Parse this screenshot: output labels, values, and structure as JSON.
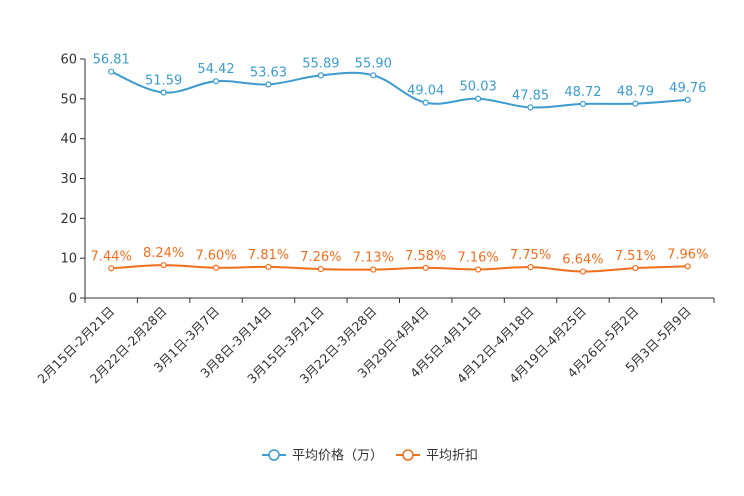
{
  "chart_data": {
    "type": "line",
    "categories": [
      "2月15日-2月21日",
      "2月22日-2月28日",
      "3月1日-3月7日",
      "3月8日-3月14日",
      "3月15日-3月21日",
      "3月22日-3月28日",
      "3月29日-4月4日",
      "4月5日-4月11日",
      "4月12日-4月18日",
      "4月19日-4月25日",
      "4月26日-5月2日",
      "5月3日-5月9日"
    ],
    "ylim": [
      0,
      60
    ],
    "yticks": [
      0,
      10,
      20,
      30,
      40,
      50,
      60
    ],
    "grid": false,
    "legend": "bottom-center",
    "series": [
      {
        "name": "平均价格（万）",
        "color": "#3d9bd0",
        "values": [
          56.81,
          51.59,
          54.42,
          53.63,
          55.89,
          55.9,
          49.04,
          50.03,
          47.85,
          48.72,
          48.79,
          49.76
        ],
        "labels": [
          "56.81",
          "51.59",
          "54.42",
          "53.63",
          "55.89",
          "55.90",
          "49.04",
          "50.03",
          "47.85",
          "48.72",
          "48.79",
          "49.76"
        ]
      },
      {
        "name": "平均折扣",
        "color": "#f06f1f",
        "values": [
          7.44,
          8.24,
          7.6,
          7.81,
          7.26,
          7.13,
          7.58,
          7.16,
          7.75,
          6.64,
          7.51,
          7.96
        ],
        "labels": [
          "7.44%",
          "8.24%",
          "7.60%",
          "7.81%",
          "7.26%",
          "7.13%",
          "7.58%",
          "7.16%",
          "7.75%",
          "6.64%",
          "7.51%",
          "7.96%"
        ]
      }
    ]
  }
}
